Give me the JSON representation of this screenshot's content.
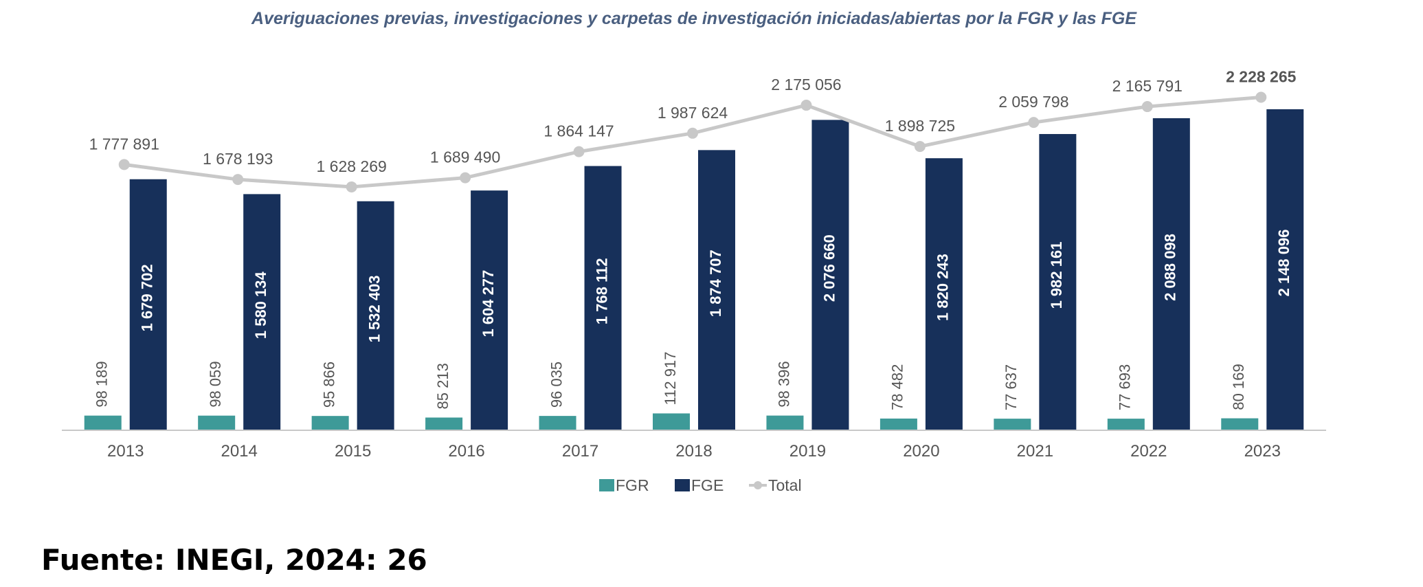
{
  "source_note": "Fuente: INEGI, 2024: 26",
  "colors": {
    "FGR": "#3E9A98",
    "FGE": "#17305A",
    "Total": "#C8C8C8",
    "title": "#4A5F80",
    "label": "#555555"
  },
  "chart_data": {
    "type": "bar",
    "title": "Averiguaciones previas, investigaciones y carpetas de investigación iniciadas/abiertas por la FGR y las FGE",
    "xlabel": "",
    "ylabel": "",
    "categories": [
      "2013",
      "2014",
      "2015",
      "2016",
      "2017",
      "2018",
      "2019",
      "2020",
      "2021",
      "2022",
      "2023"
    ],
    "ylim": [
      0,
      2350000
    ],
    "grid": false,
    "legend": "bottom-center",
    "series": [
      {
        "name": "FGR",
        "type": "bar",
        "values": [
          98189,
          98059,
          95866,
          85213,
          96035,
          112917,
          98396,
          78482,
          77637,
          77693,
          80169
        ],
        "labels": [
          "98 189",
          "98 059",
          "95 866",
          "85 213",
          "96 035",
          "112 917",
          "98 396",
          "78 482",
          "77 637",
          "77 693",
          "80 169"
        ]
      },
      {
        "name": "FGE",
        "type": "bar",
        "values": [
          1679702,
          1580134,
          1532403,
          1604277,
          1768112,
          1874707,
          2076660,
          1820243,
          1982161,
          2088098,
          2148096
        ],
        "labels": [
          "1 679 702",
          "1 580 134",
          "1 532 403",
          "1 604 277",
          "1 768 112",
          "1 874 707",
          "2 076 660",
          "1 820 243",
          "1 982 161",
          "2 088 098",
          "2 148 096"
        ]
      },
      {
        "name": "Total",
        "type": "line",
        "values": [
          1777891,
          1678193,
          1628269,
          1689490,
          1864147,
          1987624,
          2175056,
          1898725,
          2059798,
          2165791,
          2228265
        ],
        "labels": [
          "1 777 891",
          "1 678 193",
          "1 628 269",
          "1 689 490",
          "1 864 147",
          "1 987 624",
          "2 175 056",
          "1 898 725",
          "2 059 798",
          "2 165 791",
          "2 228 265"
        ]
      }
    ]
  }
}
